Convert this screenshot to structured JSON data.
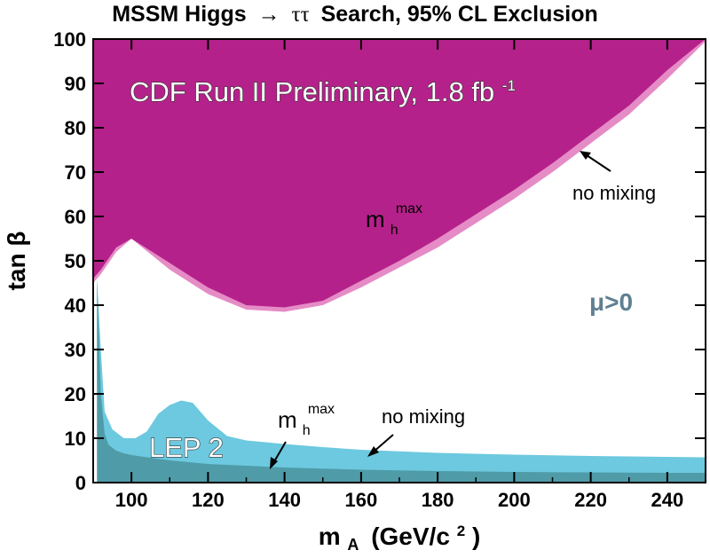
{
  "chart_data": {
    "type": "area",
    "title_prefix": "MSSM Higgs",
    "title_arrow": "→",
    "title_mid": "ττ",
    "title_suffix": "Search, 95% CL Exclusion",
    "xlabel_main": "m",
    "xlabel_sub": "A",
    "xlabel_units": "(GeV/c",
    "xlabel_sup": "2",
    "xlabel_close": ")",
    "ylabel": "tan β",
    "xlim": [
      90,
      250
    ],
    "ylim": [
      0,
      100
    ],
    "xticks": [
      100,
      120,
      140,
      160,
      180,
      200,
      220,
      240
    ],
    "yticks": [
      0,
      10,
      20,
      30,
      40,
      50,
      60,
      70,
      80,
      90,
      100
    ],
    "colors": {
      "cdf_mhmax": "#b5218a",
      "cdf_nomix": "#e58cc6",
      "lep_nomix": "#6cc9df",
      "lep_mhmax": "#4f9ba8"
    },
    "series": [
      {
        "name": "no mixing",
        "x": [
          90,
          92,
          96,
          100,
          110,
          120,
          130,
          140,
          150,
          160,
          170,
          180,
          190,
          200,
          210,
          220,
          230,
          240,
          250
        ],
        "y": [
          45,
          47,
          52,
          55,
          48,
          42.5,
          39,
          38.5,
          40,
          44,
          48.5,
          53,
          58.5,
          64,
          70,
          76.5,
          83,
          91,
          99.5
        ]
      },
      {
        "name": "mh max",
        "x": [
          90,
          92,
          96,
          100,
          110,
          120,
          130,
          140,
          150,
          160,
          170,
          180,
          190,
          200,
          210,
          220,
          230,
          240,
          250
        ],
        "y": [
          46,
          48,
          53,
          55,
          49.5,
          44,
          40,
          39.5,
          41,
          45.5,
          50,
          55,
          60.5,
          66,
          72,
          78.5,
          85,
          93,
          100
        ]
      },
      {
        "name": "LEP 2 no mixing",
        "x": [
          91,
          92,
          93,
          95,
          98,
          101,
          104,
          107,
          110,
          113,
          116,
          120,
          125,
          130,
          140,
          150,
          160,
          180,
          200,
          220,
          240,
          250
        ],
        "y": [
          46,
          30,
          16,
          12,
          10,
          10,
          11.5,
          15.5,
          17.5,
          18.5,
          18,
          14,
          10.5,
          9.5,
          8.7,
          8.0,
          7.4,
          6.7,
          6.3,
          6.0,
          5.8,
          5.7
        ]
      },
      {
        "name": "LEP 2 mh max",
        "x": [
          91,
          92,
          93,
          94,
          96,
          98,
          100,
          105,
          110,
          120,
          140,
          160,
          180,
          200,
          220,
          240,
          250
        ],
        "y": [
          46,
          20,
          11,
          8.5,
          7.2,
          6.6,
          6.2,
          5.6,
          5.0,
          4.2,
          3.4,
          2.9,
          2.6,
          2.4,
          2.3,
          2.2,
          2.2
        ]
      }
    ],
    "annotations": {
      "experiment_text": "CDF Run II Preliminary, 1.8 fb",
      "experiment_sup": "-1",
      "cdf_nomix_label": "no mixing",
      "cdf_mhmax_main": "m",
      "cdf_mhmax_sub": "h",
      "cdf_mhmax_sup": "max",
      "lep_label": "LEP 2",
      "lep_mhmax_main": "m",
      "lep_mhmax_sub": "h",
      "lep_mhmax_sup": "max",
      "lep_nomix_label": "no mixing",
      "mu_label": "μ>0"
    }
  }
}
